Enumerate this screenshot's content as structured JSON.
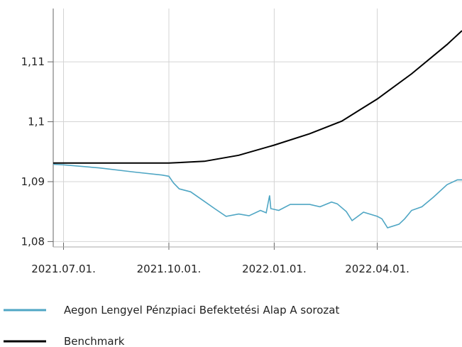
{
  "chart_data": {
    "type": "line",
    "xlim": [
      "2021-06-22",
      "2022-06-14"
    ],
    "xticks": [
      {
        "value": "2021-07-01",
        "label": "2021.07.01."
      },
      {
        "value": "2021-10-01",
        "label": "2021.10.01."
      },
      {
        "value": "2022-01-01",
        "label": "2022.01.01."
      },
      {
        "value": "2022-04-01",
        "label": "2022.04.01."
      }
    ],
    "ylim": [
      1.0791,
      1.1189
    ],
    "yticks": [
      {
        "value": 1.08,
        "label": "1,08"
      },
      {
        "value": 1.09,
        "label": "1,09"
      },
      {
        "value": 1.1,
        "label": "1,1"
      },
      {
        "value": 1.11,
        "label": "1,11"
      }
    ],
    "grid": true,
    "legend": "bottom",
    "series": [
      {
        "name": "Aegon Lengyel Pénzpiaci Befektetési Alap A sorozat",
        "color": "#4fa6c4",
        "x": [
          "2021-06-22",
          "2021-07-01",
          "2021-08-01",
          "2021-09-01",
          "2021-09-25",
          "2021-10-01",
          "2021-10-05",
          "2021-10-10",
          "2021-10-20",
          "2021-11-01",
          "2021-11-10",
          "2021-11-20",
          "2021-12-01",
          "2021-12-10",
          "2021-12-20",
          "2021-12-25",
          "2021-12-28",
          "2021-12-29",
          "2022-01-05",
          "2022-01-15",
          "2022-02-01",
          "2022-02-10",
          "2022-02-20",
          "2022-02-25",
          "2022-03-05",
          "2022-03-10",
          "2022-03-20",
          "2022-04-01",
          "2022-04-05",
          "2022-04-10",
          "2022-04-20",
          "2022-04-25",
          "2022-05-01",
          "2022-05-10",
          "2022-05-20",
          "2022-06-01",
          "2022-06-10",
          "2022-06-14"
        ],
        "values": [
          1.0929,
          1.0928,
          1.0923,
          1.0916,
          1.0911,
          1.0909,
          1.0898,
          1.0888,
          1.0883,
          1.0867,
          1.0855,
          1.0842,
          1.0846,
          1.0843,
          1.0852,
          1.0848,
          1.0877,
          1.0855,
          1.0852,
          1.0862,
          1.0862,
          1.0858,
          1.0866,
          1.0863,
          1.085,
          1.0835,
          1.0849,
          1.0842,
          1.0838,
          1.0823,
          1.0829,
          1.0838,
          1.0852,
          1.0858,
          1.0874,
          1.0895,
          1.0903,
          1.0903
        ]
      },
      {
        "name": "Benchmark",
        "color": "#000000",
        "x": [
          "2021-06-22",
          "2021-07-01",
          "2021-10-01",
          "2021-11-01",
          "2021-12-01",
          "2022-01-01",
          "2022-02-01",
          "2022-03-01",
          "2022-04-01",
          "2022-05-01",
          "2022-06-01",
          "2022-06-14"
        ],
        "values": [
          1.0931,
          1.0931,
          1.0931,
          1.0934,
          1.0944,
          1.0961,
          1.098,
          1.1001,
          1.1038,
          1.108,
          1.1129,
          1.1152
        ]
      }
    ]
  }
}
